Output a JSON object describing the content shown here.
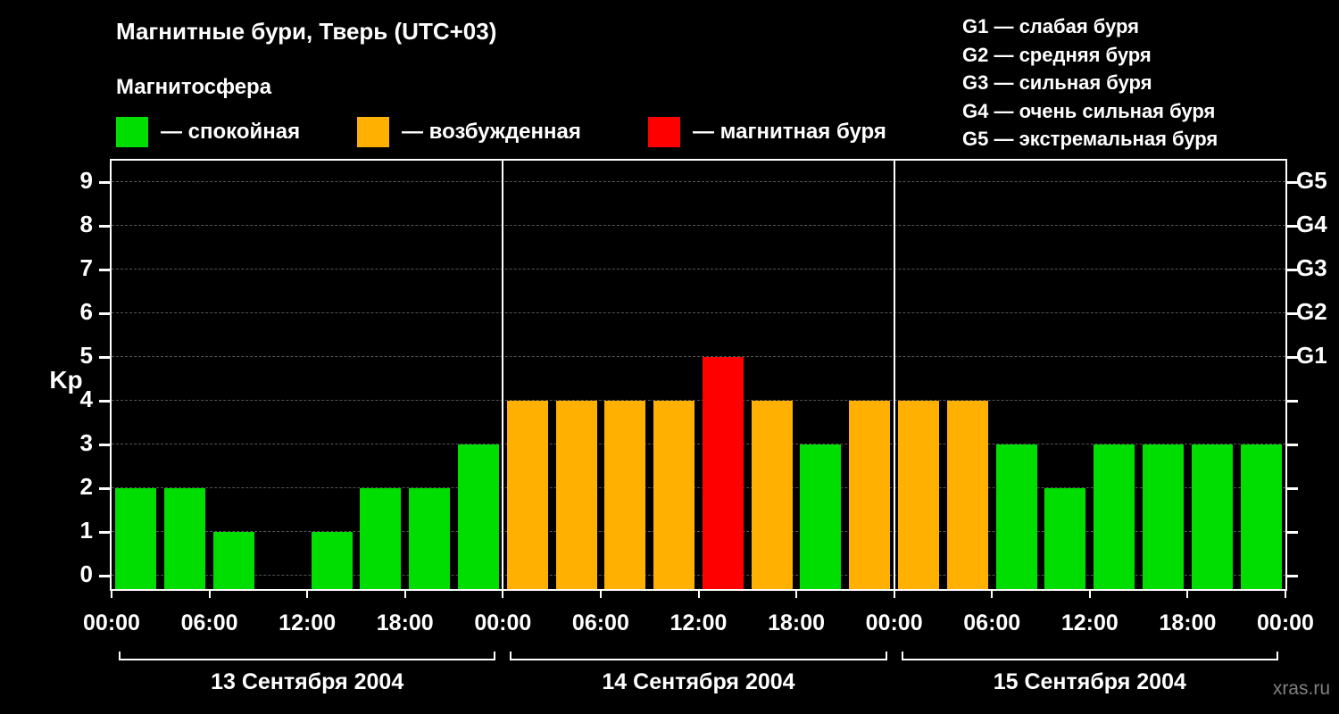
{
  "title": "Магнитные бури, Тверь (UTC+03)",
  "subtitle": "Магнитосфера",
  "legend": [
    {
      "label": "— спокойная",
      "color": "#00dd00",
      "key": "quiet"
    },
    {
      "label": "— возбужденная",
      "color": "#ffb000",
      "key": "excited"
    },
    {
      "label": "— магнитная буря",
      "color": "#ff0000",
      "key": "storm"
    }
  ],
  "storm_scale": [
    "G1 — слабая буря",
    "G2 — средняя буря",
    "G3 — сильная буря",
    "G4 — очень сильная буря",
    "G5 — экстремальная буря"
  ],
  "watermark": "xras.ru",
  "chart_data": {
    "type": "bar",
    "title": "Магнитные бури, Тверь (UTC+03)",
    "ylabel": "Kp",
    "ylim": [
      0,
      9
    ],
    "yticks": [
      0,
      1,
      2,
      3,
      4,
      5,
      6,
      7,
      8,
      9
    ],
    "right_axis": [
      {
        "label": "G1",
        "kp": 5
      },
      {
        "label": "G2",
        "kp": 6
      },
      {
        "label": "G3",
        "kp": 7
      },
      {
        "label": "G4",
        "kp": 8
      },
      {
        "label": "G5",
        "kp": 9
      }
    ],
    "time_ticks": [
      "00:00",
      "06:00",
      "12:00",
      "18:00"
    ],
    "interval_hours": 3,
    "days": [
      {
        "date": "13 Сентября 2004",
        "values": [
          2,
          2,
          1,
          0,
          1,
          2,
          2,
          3
        ]
      },
      {
        "date": "14 Сентября 2004",
        "values": [
          4,
          4,
          4,
          4,
          5,
          4,
          3,
          4
        ]
      },
      {
        "date": "15 Сентября 2004",
        "values": [
          4,
          4,
          3,
          2,
          3,
          3,
          3,
          3
        ]
      }
    ],
    "colors": {
      "quiet": "#00dd00",
      "excited": "#ffb000",
      "storm": "#ff0000"
    },
    "thresholds": {
      "excited_min": 4,
      "storm_min": 5
    },
    "grid": "dashed horizontal",
    "legend_position": "top"
  }
}
